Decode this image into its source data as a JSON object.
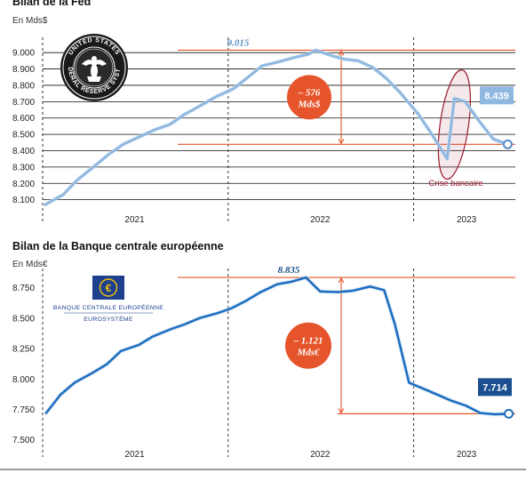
{
  "colors": {
    "fed_line": "#8fb8e0",
    "fed_line_dark": "#5a8fc6",
    "ecb_line": "#1e6fc0",
    "ecb_badge": "#1b4f8f",
    "accent": "#e5542a",
    "crisis": "#9b1a2e",
    "grid": "#111111",
    "divider": "#333333"
  },
  "icons": {
    "fed": "federal-reserve-seal-icon",
    "ecb": "euro-symbol-icon"
  },
  "chart_data": [
    {
      "type": "line",
      "title": "Bilan de la Fed",
      "unit_label": "En Mds$",
      "y_ticks": [
        "9.000",
        "8.900",
        "8.800",
        "8.700",
        "8.600",
        "8.500",
        "8.400",
        "8.300",
        "8.200",
        "8.100"
      ],
      "y_tick_values": [
        9000,
        8900,
        8800,
        8700,
        8600,
        8500,
        8400,
        8300,
        8200,
        8100
      ],
      "ylim": [
        8060,
        9050
      ],
      "x_ticks": [
        "2021",
        "2022",
        "2023"
      ],
      "x_tick_positions": [
        "2021-07-01",
        "2022-07-01",
        "2023-04-15"
      ],
      "x_dividers": [
        "2021-01-01",
        "2022-01-01",
        "2023-01-01"
      ],
      "xlim": [
        "2021-01-01",
        "2023-07-20"
      ],
      "grid": true,
      "series": [
        {
          "values": [
            [
              "2021-01-06",
              8070
            ],
            [
              "2021-02-10",
              8130
            ],
            [
              "2021-03-10",
              8220
            ],
            [
              "2021-04-07",
              8290
            ],
            [
              "2021-05-12",
              8380
            ],
            [
              "2021-06-09",
              8440
            ],
            [
              "2021-07-07",
              8480
            ],
            [
              "2021-08-11",
              8530
            ],
            [
              "2021-09-08",
              8560
            ],
            [
              "2021-10-06",
              8620
            ],
            [
              "2021-11-10",
              8680
            ],
            [
              "2021-12-08",
              8730
            ],
            [
              "2022-01-12",
              8780
            ],
            [
              "2022-02-09",
              8850
            ],
            [
              "2022-03-09",
              8920
            ],
            [
              "2022-04-06",
              8940
            ],
            [
              "2022-05-11",
              8970
            ],
            [
              "2022-06-08",
              8990
            ],
            [
              "2022-06-22",
              9015
            ],
            [
              "2022-07-20",
              8985
            ],
            [
              "2022-08-17",
              8960
            ],
            [
              "2022-09-14",
              8950
            ],
            [
              "2022-10-12",
              8910
            ],
            [
              "2022-11-09",
              8840
            ],
            [
              "2022-12-07",
              8750
            ],
            [
              "2023-01-11",
              8620
            ],
            [
              "2023-02-08",
              8490
            ],
            [
              "2023-03-08",
              8350
            ],
            [
              "2023-03-22",
              8720
            ],
            [
              "2023-04-12",
              8700
            ],
            [
              "2023-05-10",
              8580
            ],
            [
              "2023-06-07",
              8470
            ],
            [
              "2023-07-05",
              8439
            ]
          ]
        }
      ],
      "annotations": {
        "peak_label": "9.015",
        "peak_value": 9015,
        "low_value": 8439,
        "delta_label_line1": "– 576",
        "delta_label_line2": "Mds$",
        "last_label": "8.439",
        "last_value": 8439,
        "crisis_label": "Crise bancaire"
      }
    },
    {
      "type": "line",
      "title": "Bilan de la Banque centrale européenne",
      "unit_label": "En Mds€",
      "y_ticks": [
        "8.750",
        "8.500",
        "8.250",
        "8.000",
        "7.750",
        "7.500"
      ],
      "y_tick_values": [
        8750,
        8500,
        8250,
        8000,
        7750,
        7500
      ],
      "ylim": [
        7490,
        8850
      ],
      "x_ticks": [
        "2021",
        "2022",
        "2023"
      ],
      "x_tick_positions": [
        "2021-07-01",
        "2022-07-01",
        "2023-04-15"
      ],
      "x_dividers": [
        "2021-01-01",
        "2022-01-01",
        "2023-01-01"
      ],
      "xlim": [
        "2021-01-01",
        "2023-07-20"
      ],
      "grid": false,
      "series": [
        {
          "values": [
            [
              "2021-01-08",
              7720
            ],
            [
              "2021-02-05",
              7870
            ],
            [
              "2021-03-05",
              7970
            ],
            [
              "2021-04-09",
              8050
            ],
            [
              "2021-05-07",
              8120
            ],
            [
              "2021-06-04",
              8230
            ],
            [
              "2021-07-09",
              8280
            ],
            [
              "2021-08-06",
              8350
            ],
            [
              "2021-09-10",
              8410
            ],
            [
              "2021-10-08",
              8450
            ],
            [
              "2021-11-05",
              8500
            ],
            [
              "2021-12-10",
              8540
            ],
            [
              "2022-01-07",
              8580
            ],
            [
              "2022-02-04",
              8640
            ],
            [
              "2022-03-04",
              8710
            ],
            [
              "2022-04-08",
              8780
            ],
            [
              "2022-05-06",
              8800
            ],
            [
              "2022-06-03",
              8835
            ],
            [
              "2022-07-01",
              8720
            ],
            [
              "2022-08-05",
              8715
            ],
            [
              "2022-09-02",
              8725
            ],
            [
              "2022-10-07",
              8760
            ],
            [
              "2022-11-04",
              8730
            ],
            [
              "2022-11-25",
              8450
            ],
            [
              "2022-12-23",
              7970
            ],
            [
              "2023-01-20",
              7920
            ],
            [
              "2023-02-17",
              7870
            ],
            [
              "2023-03-17",
              7820
            ],
            [
              "2023-04-14",
              7780
            ],
            [
              "2023-05-12",
              7720
            ],
            [
              "2023-06-09",
              7710
            ],
            [
              "2023-07-07",
              7714
            ]
          ]
        }
      ],
      "annotations": {
        "peak_label": "8.835",
        "peak_value": 8835,
        "low_value": 7714,
        "delta_label_line1": "– 1.121",
        "delta_label_line2": "Mds€",
        "last_label": "7.714",
        "last_value": 7714,
        "logo_line1": "BANQUE CENTRALE EUROPÉENNE",
        "logo_line2": "EUROSYSTÈME"
      }
    }
  ]
}
